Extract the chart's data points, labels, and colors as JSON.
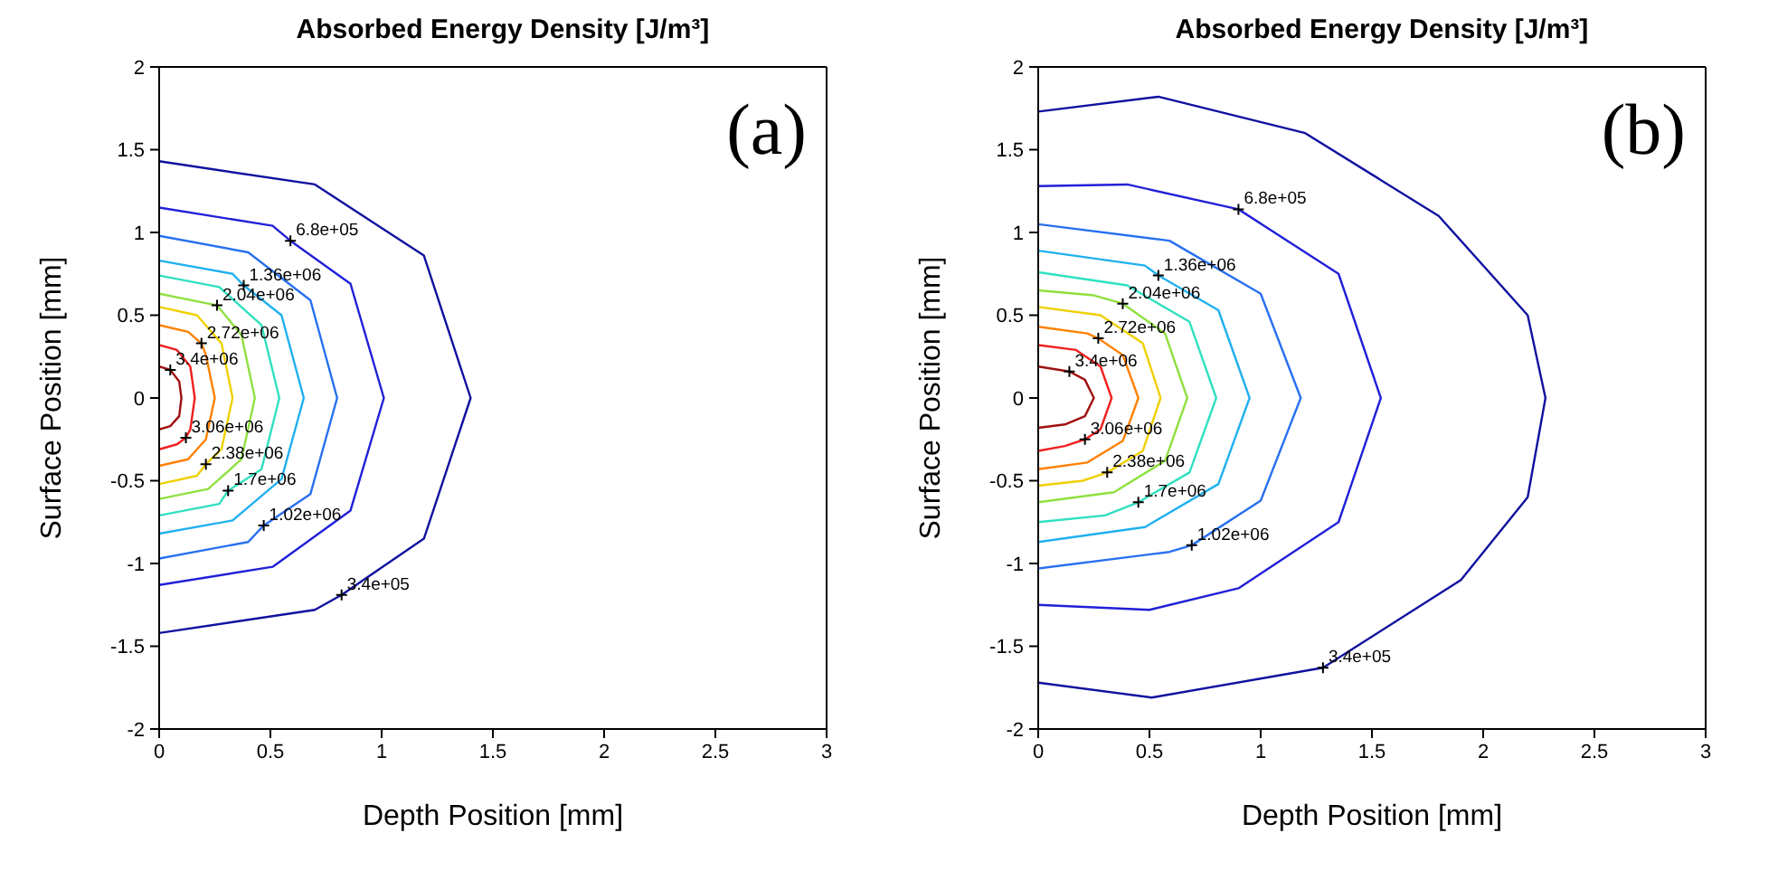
{
  "chart_data": [
    {
      "type": "line",
      "title": "Absorbed Energy Density [J/m³]",
      "xlabel": "Depth Position [mm]",
      "ylabel": "Surface Position [mm]",
      "xlim": [
        0,
        3
      ],
      "ylim": [
        -2,
        2
      ],
      "xticks": [
        0,
        0.5,
        1,
        1.5,
        2,
        2.5,
        3
      ],
      "yticks": [
        -2,
        -1.5,
        -1,
        -0.5,
        0,
        0.5,
        1,
        1.5,
        2
      ],
      "annotations": [
        "(a)",
        {
          "text": "6.8e+05",
          "x": 0.59,
          "y": 0.95
        },
        {
          "text": "1.36e+06",
          "x": 0.38,
          "y": 0.68
        },
        {
          "text": "2.04e+06",
          "x": 0.26,
          "y": 0.56
        },
        {
          "text": "2.72e+06",
          "x": 0.19,
          "y": 0.33
        },
        {
          "text": "3.4e+06",
          "x": 0.05,
          "y": 0.17
        },
        {
          "text": "3.06e+06",
          "x": 0.12,
          "y": -0.24
        },
        {
          "text": "2.38e+06",
          "x": 0.21,
          "y": -0.4
        },
        {
          "text": "1.7e+06",
          "x": 0.31,
          "y": -0.56
        },
        {
          "text": "1.02e+06",
          "x": 0.47,
          "y": -0.77
        },
        {
          "text": "3.4e+05",
          "x": 0.82,
          "y": -1.19
        }
      ],
      "series": [
        {
          "color": "#1010a0",
          "x": [
            0,
            0.7,
            1.19,
            1.4,
            1.19,
            0.82,
            0.7,
            0
          ],
          "values": [
            1.43,
            1.29,
            0.86,
            0,
            -0.85,
            -1.19,
            -1.28,
            -1.42
          ]
        },
        {
          "color": "#2020d8",
          "x": [
            0,
            0.51,
            0.59,
            0.86,
            1.01,
            0.86,
            0.51,
            0
          ],
          "values": [
            1.15,
            1.04,
            0.95,
            0.69,
            0,
            -0.68,
            -1.02,
            -1.13
          ]
        },
        {
          "color": "#2870f0",
          "x": [
            0,
            0.4,
            0.68,
            0.8,
            0.68,
            0.47,
            0.4,
            0
          ],
          "values": [
            0.98,
            0.88,
            0.59,
            0,
            -0.58,
            -0.77,
            -0.87,
            -0.97
          ]
        },
        {
          "color": "#20b0f0",
          "x": [
            0,
            0.33,
            0.38,
            0.55,
            0.65,
            0.55,
            0.33,
            0
          ],
          "values": [
            0.83,
            0.75,
            0.68,
            0.5,
            0,
            -0.49,
            -0.74,
            -0.82
          ]
        },
        {
          "color": "#30e0c0",
          "x": [
            0,
            0.27,
            0.46,
            0.54,
            0.46,
            0.31,
            0.27,
            0
          ],
          "values": [
            0.74,
            0.67,
            0.44,
            0,
            -0.43,
            -0.56,
            -0.64,
            -0.71
          ]
        },
        {
          "color": "#90e040",
          "x": [
            0,
            0.22,
            0.26,
            0.37,
            0.43,
            0.37,
            0.22,
            0
          ],
          "values": [
            0.63,
            0.57,
            0.56,
            0.38,
            0,
            -0.37,
            -0.55,
            -0.61
          ]
        },
        {
          "color": "#f0d000",
          "x": [
            0,
            0.17,
            0.28,
            0.33,
            0.28,
            0.21,
            0.17,
            0
          ],
          "values": [
            0.55,
            0.5,
            0.33,
            0,
            -0.31,
            -0.4,
            -0.47,
            -0.52
          ]
        },
        {
          "color": "#ff8000",
          "x": [
            0,
            0.13,
            0.19,
            0.21,
            0.25,
            0.21,
            0.13,
            0
          ],
          "values": [
            0.44,
            0.4,
            0.33,
            0.26,
            0,
            -0.25,
            -0.37,
            -0.41
          ]
        },
        {
          "color": "#f02020",
          "x": [
            0,
            0.08,
            0.14,
            0.16,
            0.14,
            0.12,
            0.08,
            0
          ],
          "values": [
            0.32,
            0.29,
            0.19,
            0,
            -0.19,
            -0.24,
            -0.28,
            -0.31
          ]
        },
        {
          "color": "#a01010",
          "x": [
            0,
            0.05,
            0.09,
            0.1,
            0.09,
            0.05,
            0
          ],
          "values": [
            0.19,
            0.17,
            0.1,
            0,
            -0.11,
            -0.17,
            -0.19
          ]
        }
      ]
    },
    {
      "type": "line",
      "title": "Absorbed Energy Density [J/m³]",
      "xlabel": "Depth Position [mm]",
      "ylabel": "Surface Position [mm]",
      "xlim": [
        0,
        3
      ],
      "ylim": [
        -2,
        2
      ],
      "xticks": [
        0,
        0.5,
        1,
        1.5,
        2,
        2.5,
        3
      ],
      "yticks": [
        -2,
        -1.5,
        -1,
        -0.5,
        0,
        0.5,
        1,
        1.5,
        2
      ],
      "annotations": [
        "(b)",
        {
          "text": "6.8e+05",
          "x": 0.9,
          "y": 1.14
        },
        {
          "text": "1.36e+06",
          "x": 0.54,
          "y": 0.74
        },
        {
          "text": "2.04e+06",
          "x": 0.38,
          "y": 0.57
        },
        {
          "text": "2.72e+06",
          "x": 0.27,
          "y": 0.36
        },
        {
          "text": "3.4e+06",
          "x": 0.14,
          "y": 0.16
        },
        {
          "text": "3.06e+06",
          "x": 0.21,
          "y": -0.25
        },
        {
          "text": "2.38e+06",
          "x": 0.31,
          "y": -0.45
        },
        {
          "text": "1.7e+06",
          "x": 0.45,
          "y": -0.63
        },
        {
          "text": "1.02e+06",
          "x": 0.69,
          "y": -0.89
        },
        {
          "text": "3.4e+05",
          "x": 1.28,
          "y": -1.63
        }
      ],
      "series": [
        {
          "color": "#1010a0",
          "x": [
            0,
            0.54,
            1.2,
            1.8,
            2.2,
            2.28,
            2.2,
            1.9,
            1.28,
            0.51,
            0
          ],
          "values": [
            1.73,
            1.82,
            1.6,
            1.1,
            0.5,
            0,
            -0.6,
            -1.1,
            -1.63,
            -1.81,
            -1.72
          ]
        },
        {
          "color": "#2020d8",
          "x": [
            0,
            0.4,
            0.9,
            1.35,
            1.54,
            1.35,
            0.9,
            0.5,
            0
          ],
          "values": [
            1.28,
            1.29,
            1.14,
            0.75,
            0,
            -0.75,
            -1.15,
            -1.28,
            -1.25
          ]
        },
        {
          "color": "#2870f0",
          "x": [
            0,
            0.59,
            1,
            1.18,
            1,
            0.69,
            0.59,
            0
          ],
          "values": [
            1.05,
            0.95,
            0.63,
            0,
            -0.62,
            -0.89,
            -0.93,
            -1.03
          ]
        },
        {
          "color": "#20b0f0",
          "x": [
            0,
            0.48,
            0.54,
            0.81,
            0.95,
            0.81,
            0.48,
            0
          ],
          "values": [
            0.89,
            0.8,
            0.74,
            0.53,
            0,
            -0.52,
            -0.78,
            -0.87
          ]
        },
        {
          "color": "#30e0c0",
          "x": [
            0,
            0.4,
            0.68,
            0.8,
            0.68,
            0.45,
            0.3,
            0
          ],
          "values": [
            0.76,
            0.68,
            0.46,
            0,
            -0.45,
            -0.63,
            -0.71,
            -0.75
          ]
        },
        {
          "color": "#90e040",
          "x": [
            0,
            0.25,
            0.38,
            0.57,
            0.67,
            0.57,
            0.34,
            0
          ],
          "values": [
            0.65,
            0.62,
            0.57,
            0.39,
            0,
            -0.38,
            -0.57,
            -0.63
          ]
        },
        {
          "color": "#f0d000",
          "x": [
            0,
            0.28,
            0.47,
            0.55,
            0.47,
            0.31,
            0.2,
            0
          ],
          "values": [
            0.55,
            0.5,
            0.33,
            0,
            -0.32,
            -0.45,
            -0.5,
            -0.53
          ]
        },
        {
          "color": "#ff8000",
          "x": [
            0,
            0.22,
            0.27,
            0.38,
            0.45,
            0.38,
            0.22,
            0
          ],
          "values": [
            0.43,
            0.39,
            0.36,
            0.26,
            0,
            -0.26,
            -0.39,
            -0.43
          ]
        },
        {
          "color": "#f02020",
          "x": [
            0,
            0.17,
            0.28,
            0.33,
            0.28,
            0.21,
            0.12,
            0
          ],
          "values": [
            0.32,
            0.29,
            0.19,
            0,
            -0.19,
            -0.25,
            -0.29,
            -0.32
          ]
        },
        {
          "color": "#a01010",
          "x": [
            0,
            0.14,
            0.21,
            0.25,
            0.21,
            0.12,
            0
          ],
          "values": [
            0.19,
            0.16,
            0.11,
            0,
            -0.11,
            -0.16,
            -0.18
          ]
        }
      ]
    }
  ]
}
